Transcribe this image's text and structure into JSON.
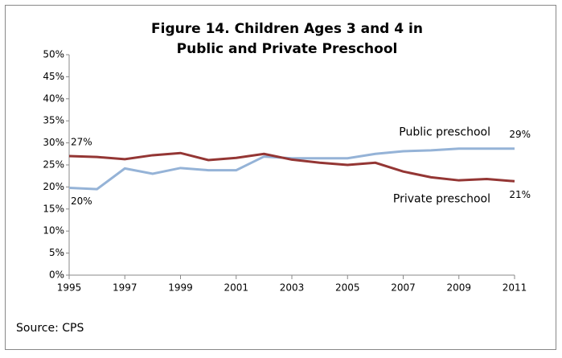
{
  "chart_data": {
    "type": "line",
    "title": [
      "Figure 14. Children Ages 3 and 4 in",
      "Public and Private Preschool"
    ],
    "source": "Source: CPS",
    "x": [
      1995,
      1996,
      1997,
      1998,
      1999,
      2000,
      2001,
      2002,
      2003,
      2004,
      2005,
      2006,
      2007,
      2008,
      2009,
      2010,
      2011
    ],
    "xlim": [
      1995,
      2011
    ],
    "xticks": [
      1995,
      1997,
      1999,
      2001,
      2003,
      2005,
      2007,
      2009,
      2011
    ],
    "ylim": [
      0,
      50
    ],
    "yticks": [
      {
        "value": 0,
        "label": "0%"
      },
      {
        "value": 5,
        "label": "5%"
      },
      {
        "value": 10,
        "label": "10%"
      },
      {
        "value": 15,
        "label": "15%"
      },
      {
        "value": 20,
        "label": "20%"
      },
      {
        "value": 25,
        "label": "25%"
      },
      {
        "value": 30,
        "label": "30%"
      },
      {
        "value": 35,
        "label": "35%"
      },
      {
        "value": 40,
        "label": "40%"
      },
      {
        "value": 45,
        "label": "45%"
      },
      {
        "value": 50,
        "label": "50%"
      }
    ],
    "grid": false,
    "series": [
      {
        "name": "Public preschool",
        "color": "#95b3d7",
        "values": [
          19.8,
          19.5,
          24.2,
          23.0,
          24.3,
          23.8,
          23.8,
          26.9,
          26.5,
          26.5,
          26.5,
          27.5,
          28.1,
          28.3,
          28.7,
          28.7,
          28.7
        ],
        "value_labels": [
          "20%",
          null,
          null,
          null,
          null,
          null,
          null,
          null,
          null,
          null,
          null,
          null,
          null,
          null,
          null,
          null,
          "29%"
        ]
      },
      {
        "name": "Private  preschool",
        "color": "#943634",
        "values": [
          27.0,
          26.8,
          26.3,
          27.2,
          27.7,
          26.1,
          26.6,
          27.5,
          26.2,
          25.5,
          25.0,
          25.5,
          23.5,
          22.2,
          21.5,
          21.8,
          21.3
        ],
        "value_labels": [
          "27%",
          null,
          null,
          null,
          null,
          null,
          null,
          null,
          null,
          null,
          null,
          null,
          null,
          null,
          null,
          null,
          "21%"
        ]
      }
    ]
  }
}
